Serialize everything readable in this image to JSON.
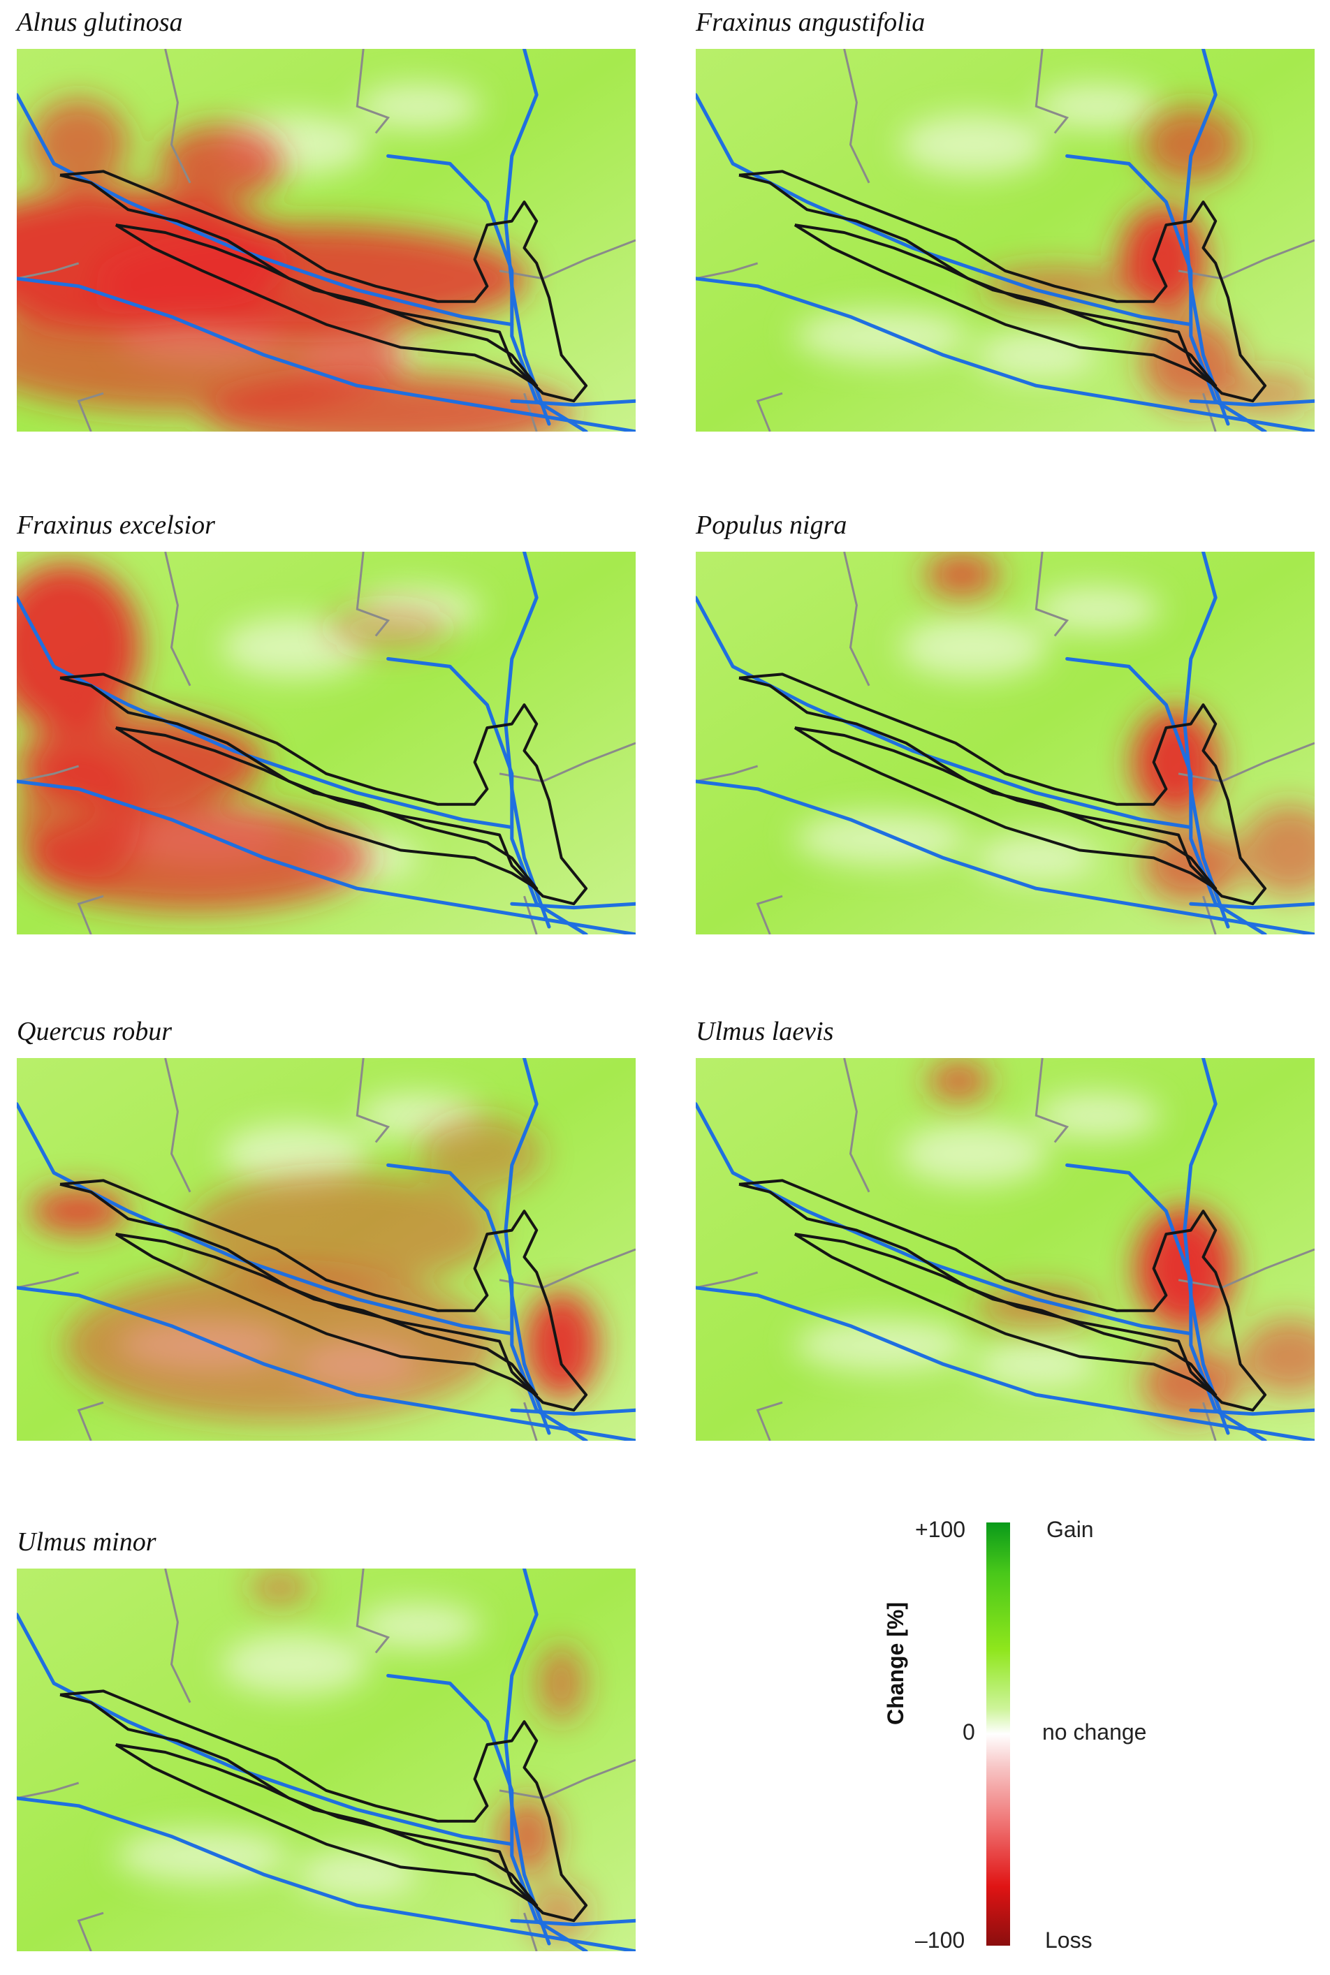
{
  "figure": {
    "panels": [
      {
        "title": "Alnus glutinosa",
        "red": [
          [
            0.02,
            0.55,
            0.28,
            0.18,
            0.9
          ],
          [
            0.3,
            0.6,
            0.35,
            0.14,
            0.8
          ],
          [
            0.1,
            0.8,
            0.35,
            0.15,
            0.6
          ],
          [
            0.45,
            0.95,
            0.3,
            0.1,
            0.7
          ],
          [
            0.28,
            0.3,
            0.1,
            0.1,
            0.7
          ],
          [
            0.06,
            0.25,
            0.08,
            0.12,
            0.6
          ]
        ]
      },
      {
        "title": "Fraxinus angustifolia",
        "red": [
          [
            0.72,
            0.55,
            0.07,
            0.14,
            0.9
          ],
          [
            0.76,
            0.25,
            0.08,
            0.1,
            0.6
          ],
          [
            0.76,
            0.82,
            0.08,
            0.12,
            0.6
          ],
          [
            0.52,
            0.62,
            0.12,
            0.05,
            0.5
          ],
          [
            0.88,
            0.9,
            0.08,
            0.06,
            0.4
          ]
        ]
      },
      {
        "title": "Fraxinus excelsior",
        "red": [
          [
            0.02,
            0.25,
            0.12,
            0.22,
            0.9
          ],
          [
            0.1,
            0.55,
            0.2,
            0.12,
            0.8
          ],
          [
            0.15,
            0.8,
            0.28,
            0.14,
            0.7
          ],
          [
            0.05,
            0.7,
            0.1,
            0.18,
            0.6
          ],
          [
            0.55,
            0.2,
            0.1,
            0.06,
            0.3
          ]
        ]
      },
      {
        "title": "Populus nigra",
        "red": [
          [
            0.74,
            0.55,
            0.07,
            0.14,
            0.9
          ],
          [
            0.4,
            0.06,
            0.06,
            0.06,
            0.7
          ],
          [
            0.76,
            0.82,
            0.08,
            0.1,
            0.6
          ],
          [
            0.92,
            0.78,
            0.08,
            0.12,
            0.5
          ]
        ]
      },
      {
        "title": "Quercus robur",
        "red": [
          [
            0.85,
            0.75,
            0.06,
            0.14,
            0.9
          ],
          [
            0.06,
            0.4,
            0.08,
            0.06,
            0.8
          ],
          [
            0.25,
            0.75,
            0.35,
            0.2,
            0.45
          ],
          [
            0.4,
            0.45,
            0.25,
            0.15,
            0.4
          ],
          [
            0.7,
            0.25,
            0.1,
            0.1,
            0.35
          ]
        ]
      },
      {
        "title": "Ulmus laevis",
        "red": [
          [
            0.75,
            0.55,
            0.08,
            0.16,
            0.95
          ],
          [
            0.4,
            0.06,
            0.05,
            0.05,
            0.7
          ],
          [
            0.76,
            0.85,
            0.08,
            0.1,
            0.6
          ],
          [
            0.92,
            0.78,
            0.08,
            0.1,
            0.5
          ],
          [
            0.5,
            0.65,
            0.1,
            0.05,
            0.5
          ]
        ]
      },
      {
        "title": "Ulmus minor",
        "red": [
          [
            0.8,
            0.7,
            0.05,
            0.1,
            0.6
          ],
          [
            0.86,
            0.3,
            0.04,
            0.1,
            0.5
          ],
          [
            0.4,
            0.05,
            0.05,
            0.04,
            0.5
          ],
          [
            0.85,
            0.9,
            0.05,
            0.08,
            0.4
          ]
        ]
      }
    ]
  },
  "legend": {
    "axis_label": "Change [%]",
    "max_label": "+100",
    "mid_label": "0",
    "min_label": "–100",
    "gain_label": "Gain",
    "nochange_label": "no change",
    "loss_label": "Loss",
    "colors": {
      "gain": "#0a9a1a",
      "no_change": "#ffffff",
      "loss": "#8a0e0e"
    }
  }
}
